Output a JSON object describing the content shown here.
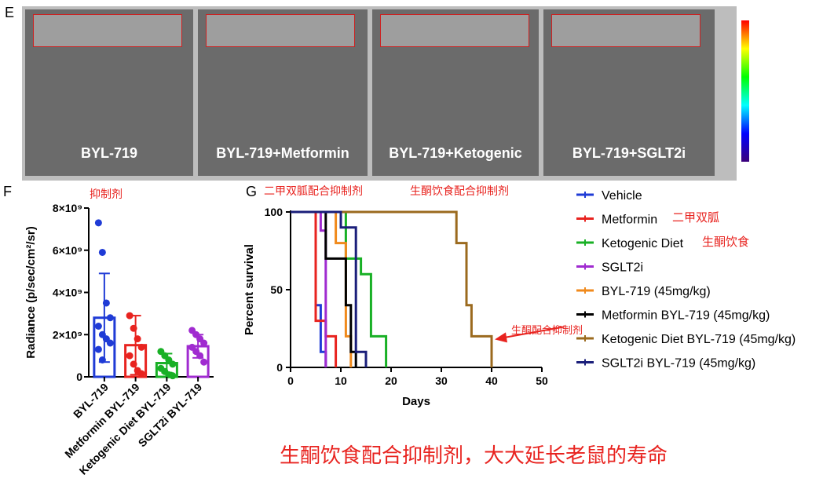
{
  "panel_letters": {
    "e": "E",
    "f": "F",
    "g": "G"
  },
  "imaging": {
    "panels": [
      {
        "label": "BYL-719"
      },
      {
        "label": "BYL-719+Metformin"
      },
      {
        "label": "BYL-719+Ketogenic"
      },
      {
        "label": "BYL-719+SGLT2i"
      }
    ],
    "scale_colors": [
      "#ff0000",
      "#ffff00",
      "#00ff00",
      "#00ffff",
      "#0000ff",
      "#3a007a"
    ]
  },
  "annotations": {
    "f_note": "抑制剂",
    "g_note1": "二甲双胍配合抑制剂",
    "g_note2": "生酮饮食配合抑制剂",
    "arrow_note": "生酮配合抑制剂",
    "legend_note_metformin": "二甲双胍",
    "legend_note_keto": "生酮饮食",
    "conclusion": "生酮饮食配合抑制剂，大大延长老鼠的寿命"
  },
  "chart_data": [
    {
      "type": "bar",
      "ylabel": "Radiance (p/sec/cm²/sr)",
      "ylim": [
        0,
        8000000000.0
      ],
      "yticks": [
        "0",
        "2×10⁹",
        "4×10⁹",
        "6×10⁹",
        "8×10⁹"
      ],
      "categories": [
        "BYL-719",
        "Metformin BYL-719",
        "Ketogenic Diet BYL-719",
        "SGLT2i BYL-719"
      ],
      "colors": [
        "#1f3bd6",
        "#e8231f",
        "#18b025",
        "#a02bd0"
      ],
      "values": [
        2800000000.0,
        1500000000.0,
        650000000.0,
        1450000000.0
      ],
      "errors": [
        2100000000.0,
        1400000000.0,
        450000000.0,
        550000000.0
      ],
      "points": [
        [
          7300000000.0,
          5900000000.0,
          3500000000.0,
          2800000000.0,
          2400000000.0,
          2000000000.0,
          1800000000.0,
          1600000000.0,
          1300000000.0,
          800000000.0
        ],
        [
          2900000000.0,
          2300000000.0,
          1800000000.0,
          1400000000.0,
          1000000000.0,
          600000000.0,
          300000000.0,
          150000000.0
        ],
        [
          1200000000.0,
          1000000000.0,
          800000000.0,
          600000000.0,
          400000000.0,
          250000000.0,
          100000000.0,
          50000000.0
        ],
        [
          2200000000.0,
          2000000000.0,
          1800000000.0,
          1600000000.0,
          1400000000.0,
          1200000000.0,
          1000000000.0,
          700000000.0
        ]
      ]
    },
    {
      "type": "line",
      "xlabel": "Days",
      "ylabel": "Percent survival",
      "xlim": [
        0,
        50
      ],
      "ylim": [
        0,
        100
      ],
      "xticks": [
        0,
        10,
        20,
        30,
        40,
        50
      ],
      "yticks": [
        0,
        50,
        100
      ],
      "series": [
        {
          "name": "Vehicle",
          "color": "#1f3bd6",
          "steps": [
            [
              0,
              100
            ],
            [
              5,
              100
            ],
            [
              5,
              40
            ],
            [
              6,
              40
            ],
            [
              6,
              10
            ],
            [
              7,
              10
            ],
            [
              7,
              0
            ]
          ]
        },
        {
          "name": "Metformin",
          "color": "#e8231f",
          "steps": [
            [
              0,
              100
            ],
            [
              5,
              100
            ],
            [
              5,
              30
            ],
            [
              7,
              30
            ],
            [
              7,
              20
            ],
            [
              9,
              20
            ],
            [
              9,
              0
            ]
          ]
        },
        {
          "name": "Ketogenic Diet",
          "color": "#18b025",
          "steps": [
            [
              0,
              100
            ],
            [
              11,
              100
            ],
            [
              11,
              70
            ],
            [
              14,
              70
            ],
            [
              14,
              60
            ],
            [
              16,
              60
            ],
            [
              16,
              20
            ],
            [
              19,
              20
            ],
            [
              19,
              0
            ]
          ]
        },
        {
          "name": "SGLT2i",
          "color": "#a02bd0",
          "steps": [
            [
              0,
              100
            ],
            [
              6,
              100
            ],
            [
              6,
              88
            ],
            [
              7,
              88
            ],
            [
              7,
              0
            ]
          ]
        },
        {
          "name": "BYL-719 (45mg/kg)",
          "color": "#f08a1c",
          "steps": [
            [
              0,
              100
            ],
            [
              9,
              100
            ],
            [
              9,
              80
            ],
            [
              11,
              80
            ],
            [
              11,
              20
            ],
            [
              12,
              20
            ],
            [
              12,
              0
            ]
          ]
        },
        {
          "name": "Metformin BYL-719 (45mg/kg)",
          "color": "#000000",
          "steps": [
            [
              0,
              100
            ],
            [
              7,
              100
            ],
            [
              7,
              70
            ],
            [
              11,
              70
            ],
            [
              11,
              40
            ],
            [
              12,
              40
            ],
            [
              12,
              10
            ],
            [
              13,
              10
            ],
            [
              13,
              0
            ]
          ]
        },
        {
          "name": "Ketogenic Diet BYL-719 (45mg/kg)",
          "color": "#9b6a1e",
          "steps": [
            [
              0,
              100
            ],
            [
              33,
              100
            ],
            [
              33,
              80
            ],
            [
              35,
              80
            ],
            [
              35,
              40
            ],
            [
              36,
              40
            ],
            [
              36,
              20
            ],
            [
              40,
              20
            ],
            [
              40,
              0
            ]
          ]
        },
        {
          "name": "SGLT2i BYL-719 (45mg/kg)",
          "color": "#1a1e7a",
          "steps": [
            [
              0,
              100
            ],
            [
              10,
              100
            ],
            [
              10,
              90
            ],
            [
              13,
              90
            ],
            [
              13,
              10
            ],
            [
              15,
              10
            ],
            [
              15,
              0
            ]
          ]
        }
      ]
    }
  ]
}
